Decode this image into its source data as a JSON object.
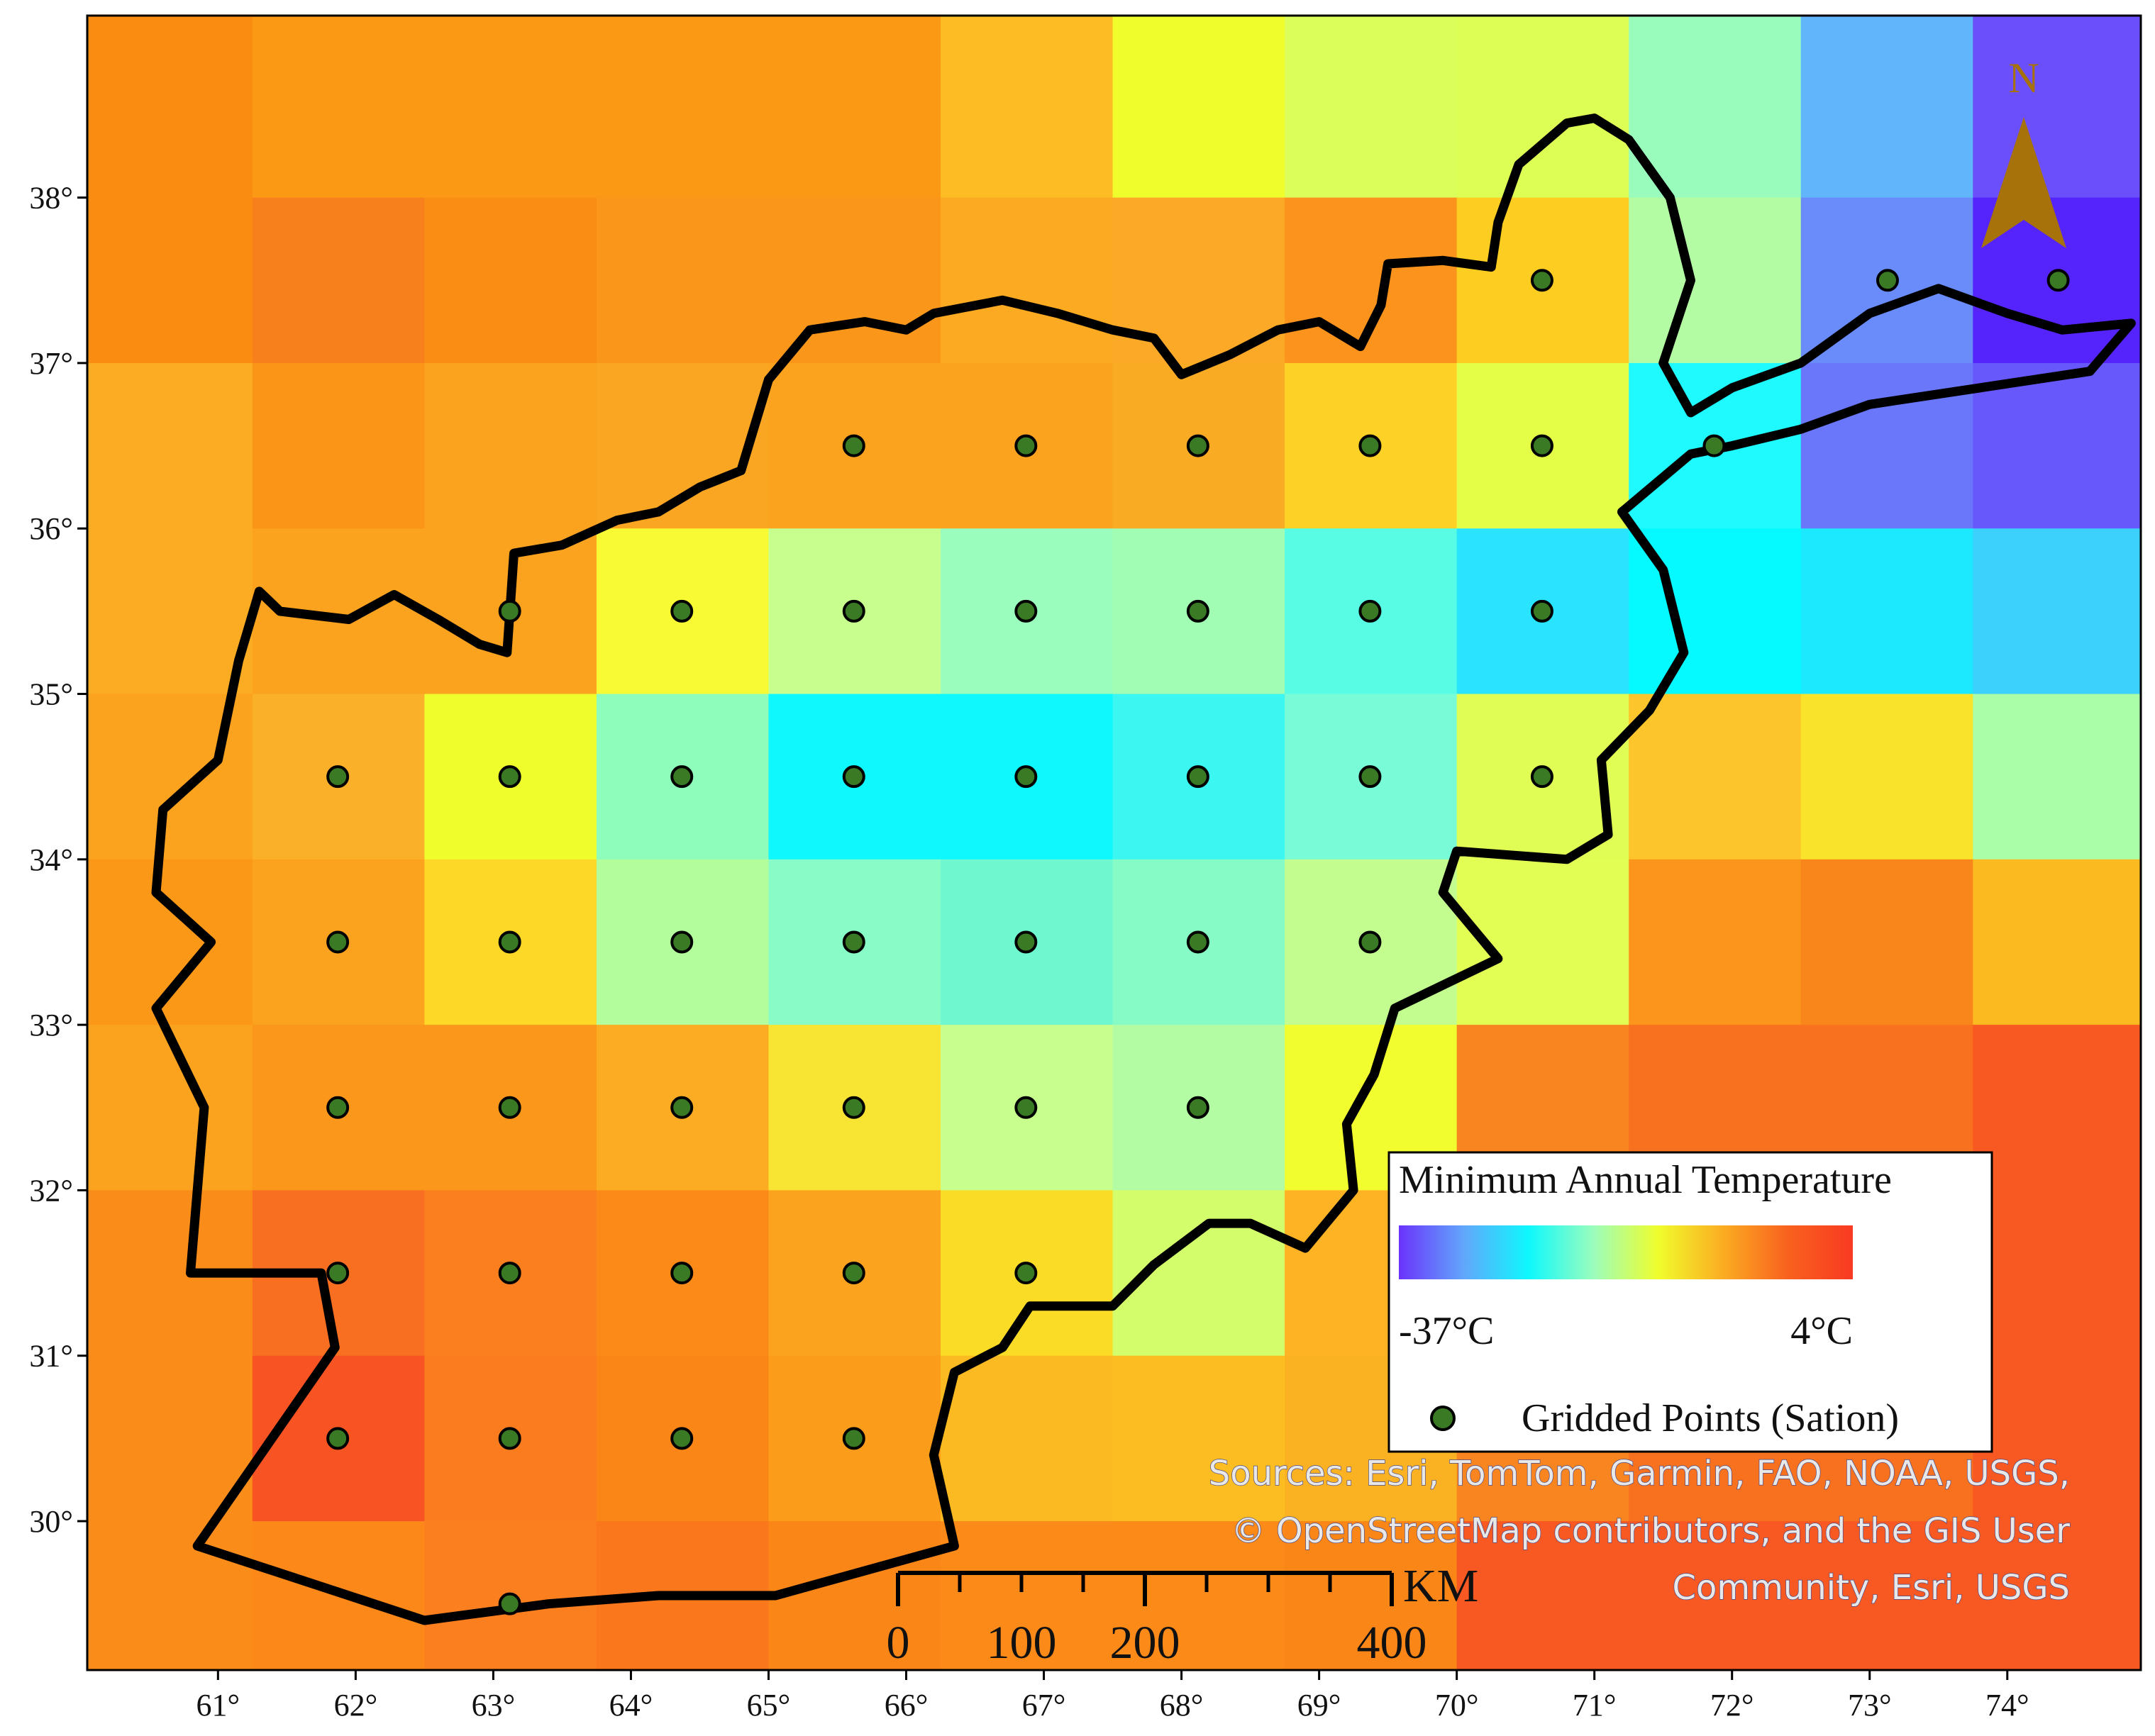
{
  "map": {
    "lon_range": [
      60.05,
      74.97
    ],
    "lat_range": [
      29.1,
      39.1
    ],
    "x_ticks": [
      "61°",
      "62°",
      "63°",
      "64°",
      "65°",
      "66°",
      "67°",
      "68°",
      "69°",
      "70°",
      "71°",
      "72°",
      "73°",
      "74°"
    ],
    "y_ticks": [
      "30°",
      "31°",
      "32°",
      "33°",
      "34°",
      "35°",
      "36°",
      "37°",
      "38°"
    ],
    "grid": {
      "lon_edges": [
        60.05,
        61.25,
        62.5,
        63.75,
        65.0,
        66.25,
        67.5,
        68.75,
        70.0,
        71.25,
        72.5,
        73.75,
        74.97
      ],
      "lat_edges": [
        39.1,
        38.0,
        37.0,
        36.0,
        35.0,
        34.0,
        33.0,
        32.0,
        31.0,
        30.0,
        29.1
      ],
      "colors": [
        [
          "#fa8c12",
          "#fb9915",
          "#fb9915",
          "#fb9915",
          "#fb9915",
          "#fdbb24",
          "#f0fd2c",
          "#dcfe5a",
          "#ddfe55",
          "#99fcbc",
          "#61b6fb",
          "#6a4ffb",
          "#6b62fb"
        ],
        [
          "#fa8c12",
          "#f8801c",
          "#fa8e14",
          "#fa971a",
          "#fa971a",
          "#fbaa22",
          "#fca927",
          "#fb931c",
          "#fdcd22",
          "#b4fca3",
          "#6a8cfb",
          "#5523fb",
          "#5d25fb"
        ],
        [
          "#fbac22",
          "#fa9517",
          "#fba21e",
          "#fba622",
          "#fba21e",
          "#fba21e",
          "#faab24",
          "#fdd125",
          "#e4fe48",
          "#1ffafe",
          "#6a77fa",
          "#6758fb",
          "#6a55fb"
        ],
        [
          "#fbac22",
          "#fba21e",
          "#fba21e",
          "#f8fb34",
          "#c8fe8d",
          "#9bfdbd",
          "#a1fdb4",
          "#58fce4",
          "#2ae3fe",
          "#04fafe",
          "#1ce8fe",
          "#3bd1fc",
          "#3bd1fc"
        ],
        [
          "#fba21e",
          "#fbb02a",
          "#f0fd2d",
          "#8efdbc",
          "#0ef8fd",
          "#0ef8fd",
          "#3cf6f1",
          "#78fbd6",
          "#e0fd56",
          "#fbc52b",
          "#f9e32b",
          "#aafea8",
          "#aafea8"
        ],
        [
          "#fb9818",
          "#fba21e",
          "#fdd826",
          "#b4fd9d",
          "#89fbc7",
          "#6ff8d0",
          "#86fbc5",
          "#c3fd90",
          "#e2fd53",
          "#fb951c",
          "#f8861b",
          "#fbba1f",
          "#fbba1f"
        ],
        [
          "#fba21e",
          "#fb971a",
          "#fb971a",
          "#fbac22",
          "#f8e533",
          "#c8fe8d",
          "#b4fca3",
          "#f1fd2e",
          "#f98520",
          "#f8711e",
          "#f8711e",
          "#f85922",
          "#f85922"
        ],
        [
          "#fa8c1a",
          "#f86f22",
          "#fb7f1f",
          "#fb8a18",
          "#fba21e",
          "#fadc26",
          "#d4fd6c",
          "#fdb324",
          "#f98520",
          "#f8711e",
          "#f8711e",
          "#f85922",
          "#f85922"
        ],
        [
          "#fa8c1a",
          "#f85322",
          "#fa7c1f",
          "#fa8618",
          "#fb9d1a",
          "#fbba22",
          "#fbbd22",
          "#fbb222",
          "#f98520",
          "#f8711e",
          "#f8711e",
          "#f85922",
          "#f85922"
        ],
        [
          "#fa8c1a",
          "#fb8818",
          "#fb7f1f",
          "#fa771c",
          "#fa8618",
          "#fb8a18",
          "#fb8a18",
          "#fa8618",
          "#f85922",
          "#f85922",
          "#f85922",
          "#f85922",
          "#f85922"
        ]
      ]
    },
    "stations": [
      [
        70.62,
        37.5
      ],
      [
        73.13,
        37.5
      ],
      [
        74.37,
        37.5
      ],
      [
        65.62,
        36.5
      ],
      [
        66.87,
        36.5
      ],
      [
        68.12,
        36.5
      ],
      [
        69.37,
        36.5
      ],
      [
        70.62,
        36.5
      ],
      [
        71.87,
        36.5
      ],
      [
        63.12,
        35.5
      ],
      [
        64.37,
        35.5
      ],
      [
        65.62,
        35.5
      ],
      [
        66.87,
        35.5
      ],
      [
        68.12,
        35.5
      ],
      [
        69.37,
        35.5
      ],
      [
        70.62,
        35.5
      ],
      [
        61.87,
        34.5
      ],
      [
        63.12,
        34.5
      ],
      [
        64.37,
        34.5
      ],
      [
        65.62,
        34.5
      ],
      [
        66.87,
        34.5
      ],
      [
        68.12,
        34.5
      ],
      [
        69.37,
        34.5
      ],
      [
        70.62,
        34.5
      ],
      [
        61.87,
        33.5
      ],
      [
        63.12,
        33.5
      ],
      [
        64.37,
        33.5
      ],
      [
        65.62,
        33.5
      ],
      [
        66.87,
        33.5
      ],
      [
        68.12,
        33.5
      ],
      [
        69.37,
        33.5
      ],
      [
        61.87,
        32.5
      ],
      [
        63.12,
        32.5
      ],
      [
        64.37,
        32.5
      ],
      [
        65.62,
        32.5
      ],
      [
        66.87,
        32.5
      ],
      [
        68.12,
        32.5
      ],
      [
        61.87,
        31.5
      ],
      [
        63.12,
        31.5
      ],
      [
        64.37,
        31.5
      ],
      [
        65.62,
        31.5
      ],
      [
        66.87,
        31.5
      ],
      [
        61.87,
        30.5
      ],
      [
        63.12,
        30.5
      ],
      [
        64.37,
        30.5
      ],
      [
        65.62,
        30.5
      ],
      [
        63.12,
        29.5
      ]
    ],
    "border": [
      [
        62.28,
        35.6
      ],
      [
        62.6,
        35.45
      ],
      [
        62.9,
        35.3
      ],
      [
        63.1,
        35.25
      ],
      [
        63.15,
        35.85
      ],
      [
        63.5,
        35.9
      ],
      [
        63.9,
        36.05
      ],
      [
        64.2,
        36.1
      ],
      [
        64.5,
        36.25
      ],
      [
        64.8,
        36.35
      ],
      [
        65.0,
        36.9
      ],
      [
        65.3,
        37.2
      ],
      [
        65.7,
        37.25
      ],
      [
        66.0,
        37.2
      ],
      [
        66.2,
        37.3
      ],
      [
        66.7,
        37.38
      ],
      [
        67.1,
        37.3
      ],
      [
        67.5,
        37.2
      ],
      [
        67.8,
        37.15
      ],
      [
        68.0,
        36.93
      ],
      [
        68.35,
        37.05
      ],
      [
        68.7,
        37.2
      ],
      [
        69.0,
        37.25
      ],
      [
        69.3,
        37.1
      ],
      [
        69.45,
        37.35
      ],
      [
        69.5,
        37.6
      ],
      [
        69.9,
        37.62
      ],
      [
        70.25,
        37.58
      ],
      [
        70.3,
        37.85
      ],
      [
        70.45,
        38.2
      ],
      [
        70.8,
        38.45
      ],
      [
        71.0,
        38.48
      ],
      [
        71.25,
        38.35
      ],
      [
        71.55,
        38.0
      ],
      [
        71.7,
        37.5
      ],
      [
        71.5,
        37.0
      ],
      [
        71.7,
        36.7
      ],
      [
        72.0,
        36.85
      ],
      [
        72.5,
        37.0
      ],
      [
        73.0,
        37.3
      ],
      [
        73.5,
        37.45
      ],
      [
        74.0,
        37.3
      ],
      [
        74.4,
        37.2
      ],
      [
        74.9,
        37.24
      ],
      [
        74.6,
        36.95
      ],
      [
        73.8,
        36.85
      ],
      [
        73.0,
        36.75
      ],
      [
        72.5,
        36.6
      ],
      [
        72.0,
        36.5
      ],
      [
        71.7,
        36.45
      ],
      [
        71.2,
        36.1
      ],
      [
        71.5,
        35.75
      ],
      [
        71.65,
        35.25
      ],
      [
        71.4,
        34.9
      ],
      [
        71.05,
        34.6
      ],
      [
        71.1,
        34.15
      ],
      [
        70.8,
        34.0
      ],
      [
        70.0,
        34.05
      ],
      [
        69.9,
        33.8
      ],
      [
        70.3,
        33.4
      ],
      [
        69.55,
        33.1
      ],
      [
        69.4,
        32.7
      ],
      [
        69.2,
        32.4
      ],
      [
        69.25,
        32.0
      ],
      [
        68.9,
        31.65
      ],
      [
        68.5,
        31.8
      ],
      [
        68.2,
        31.8
      ],
      [
        67.8,
        31.55
      ],
      [
        67.5,
        31.3
      ],
      [
        66.9,
        31.3
      ],
      [
        66.7,
        31.05
      ],
      [
        66.35,
        30.9
      ],
      [
        66.2,
        30.4
      ],
      [
        66.35,
        29.85
      ],
      [
        65.05,
        29.55
      ],
      [
        64.2,
        29.55
      ],
      [
        63.4,
        29.5
      ],
      [
        62.5,
        29.4
      ],
      [
        60.85,
        29.85
      ],
      [
        61.85,
        31.05
      ],
      [
        61.75,
        31.5
      ],
      [
        60.8,
        31.5
      ],
      [
        60.9,
        32.5
      ],
      [
        60.55,
        33.1
      ],
      [
        60.95,
        33.5
      ],
      [
        60.55,
        33.8
      ],
      [
        60.6,
        34.3
      ],
      [
        61.0,
        34.6
      ],
      [
        61.15,
        35.2
      ],
      [
        61.3,
        35.62
      ],
      [
        61.45,
        35.5
      ],
      [
        61.95,
        35.45
      ],
      [
        62.28,
        35.6
      ]
    ]
  },
  "legend": {
    "title": "Minimum Annual Temperature",
    "min_label": "-37°C",
    "max_label": "4°C",
    "gradient_colors": [
      "#6a33fb",
      "#62a6fb",
      "#0ef8fd",
      "#9bfdbd",
      "#f0fd2c",
      "#fbac22",
      "#f8611e",
      "#f83a22"
    ],
    "points_label": "Gridded Points (Sation)",
    "station_color": "#3a7a25"
  },
  "north_arrow": {
    "label": "N",
    "color": "#a8720a"
  },
  "scale_bar": {
    "unit": "KM",
    "labels": [
      "0",
      "100",
      "200",
      "400"
    ]
  },
  "attribution": {
    "line1": "Sources: Esri, TomTom, Garmin, FAO, NOAA, USGS,",
    "line2": "© OpenStreetMap contributors, and the GIS User",
    "line3": "Community, Esri, USGS"
  }
}
